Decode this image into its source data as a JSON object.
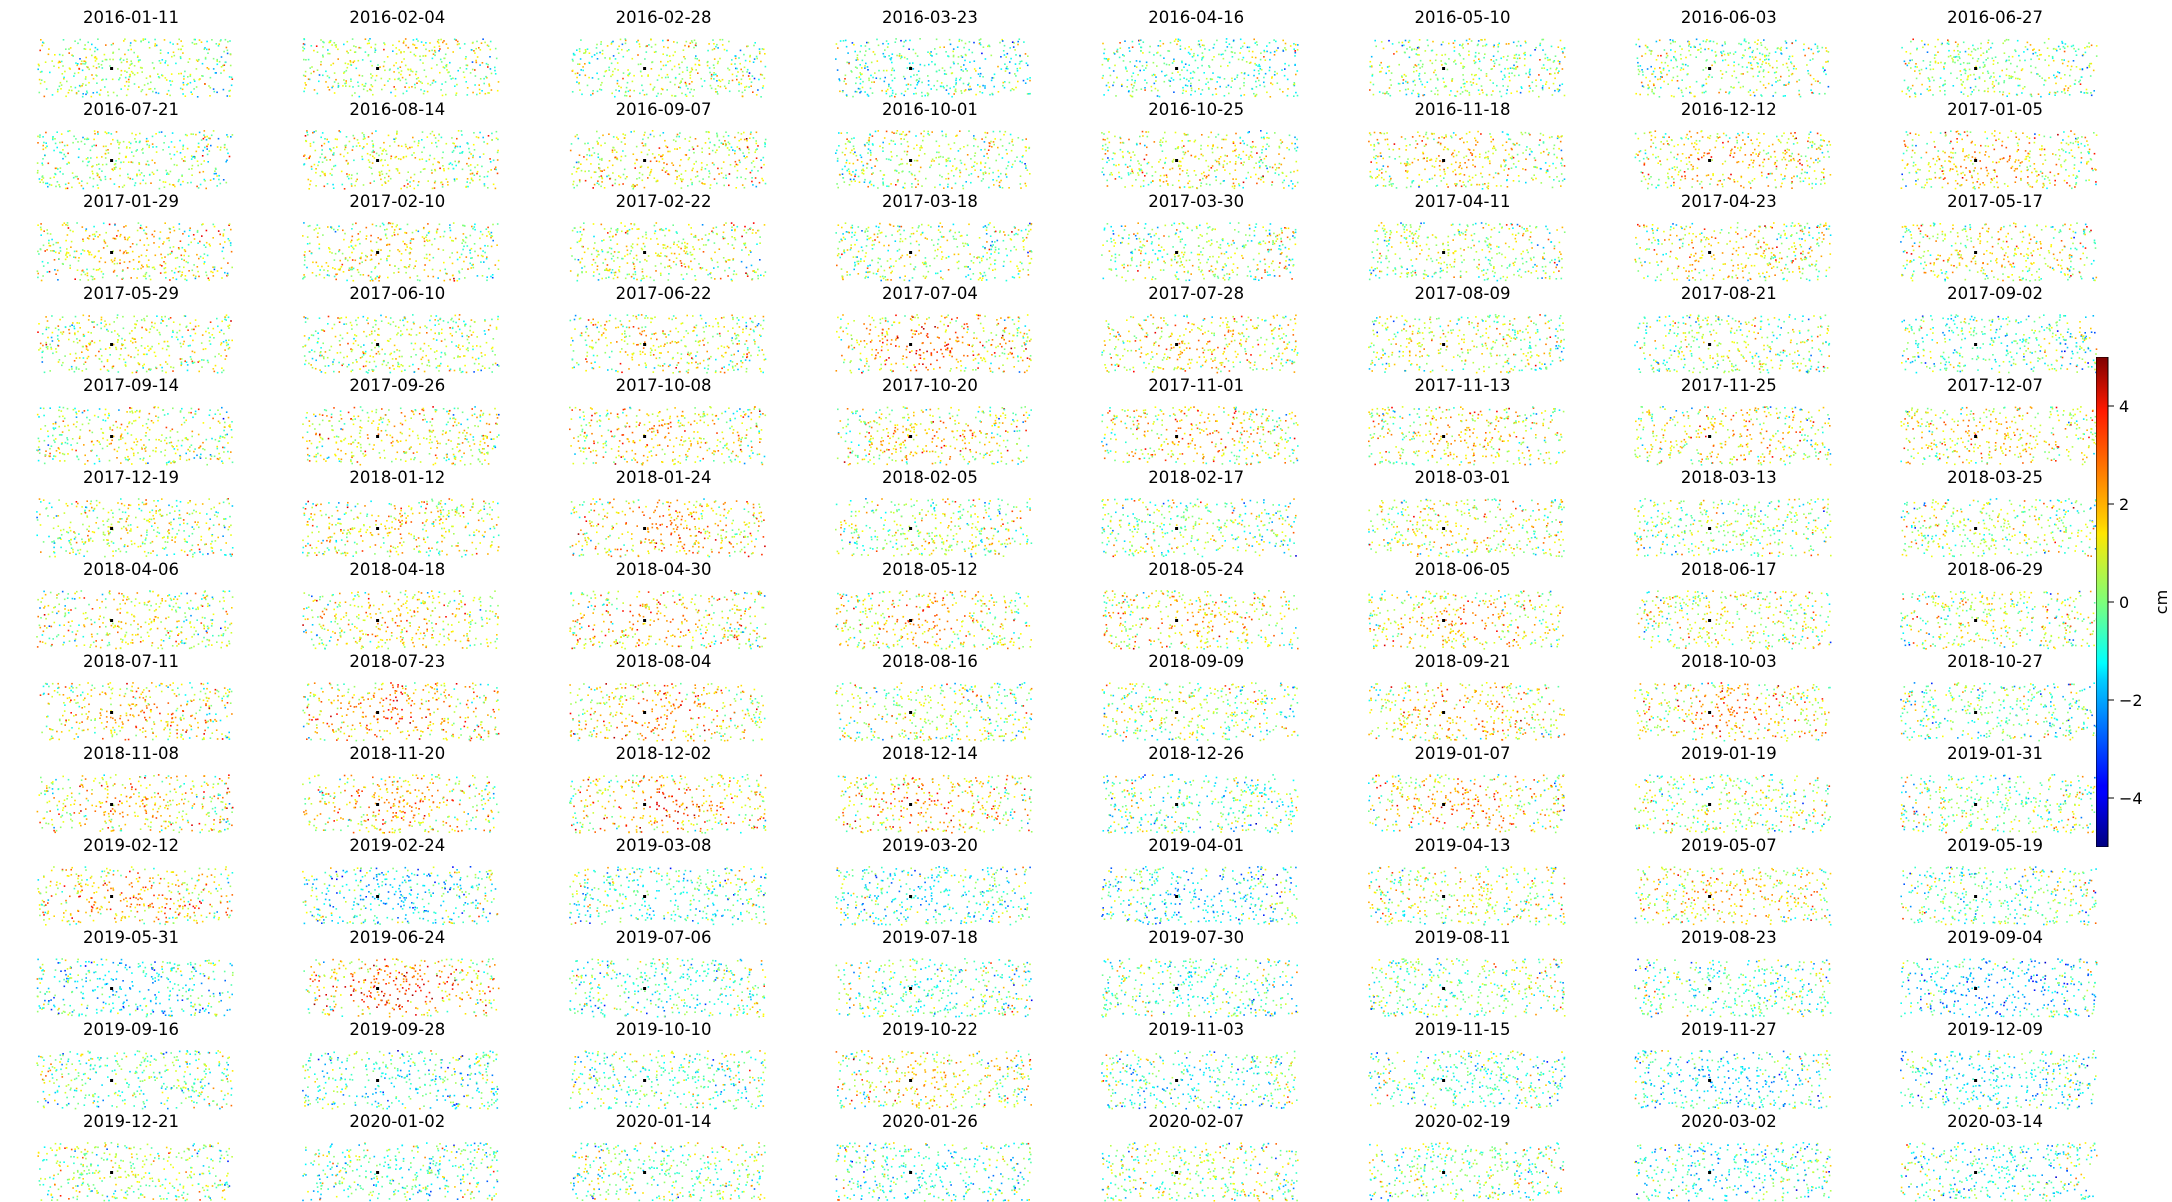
{
  "chart_data": {
    "type": "scatter",
    "layout": "small-multiples grid, 8 columns x 13 rows; each panel is a sparse point map colored by displacement",
    "dates": [
      "2016-01-11",
      "2016-02-04",
      "2016-02-28",
      "2016-03-23",
      "2016-04-16",
      "2016-05-10",
      "2016-06-03",
      "2016-06-27",
      "2016-07-21",
      "2016-08-14",
      "2016-09-07",
      "2016-10-01",
      "2016-10-25",
      "2016-11-18",
      "2016-12-12",
      "2017-01-05",
      "2017-01-29",
      "2017-02-10",
      "2017-02-22",
      "2017-03-18",
      "2017-03-30",
      "2017-04-11",
      "2017-04-23",
      "2017-05-17",
      "2017-05-29",
      "2017-06-10",
      "2017-06-22",
      "2017-07-04",
      "2017-07-28",
      "2017-08-09",
      "2017-08-21",
      "2017-09-02",
      "2017-09-14",
      "2017-09-26",
      "2017-10-08",
      "2017-10-20",
      "2017-11-01",
      "2017-11-13",
      "2017-11-25",
      "2017-12-07",
      "2017-12-19",
      "2018-01-12",
      "2018-01-24",
      "2018-02-05",
      "2018-02-17",
      "2018-03-01",
      "2018-03-13",
      "2018-03-25",
      "2018-04-06",
      "2018-04-18",
      "2018-04-30",
      "2018-05-12",
      "2018-05-24",
      "2018-06-05",
      "2018-06-17",
      "2018-06-29",
      "2018-07-11",
      "2018-07-23",
      "2018-08-04",
      "2018-08-16",
      "2018-09-09",
      "2018-09-21",
      "2018-10-03",
      "2018-10-27",
      "2018-11-08",
      "2018-11-20",
      "2018-12-02",
      "2018-12-14",
      "2018-12-26",
      "2019-01-07",
      "2019-01-19",
      "2019-01-31",
      "2019-02-12",
      "2019-02-24",
      "2019-03-08",
      "2019-03-20",
      "2019-04-01",
      "2019-04-13",
      "2019-05-07",
      "2019-05-19",
      "2019-05-31",
      "2019-06-24",
      "2019-07-06",
      "2019-07-18",
      "2019-07-30",
      "2019-08-11",
      "2019-08-23",
      "2019-09-04",
      "2019-09-16",
      "2019-09-28",
      "2019-10-10",
      "2019-10-22",
      "2019-11-03",
      "2019-11-15",
      "2019-11-27",
      "2019-12-09",
      "2019-12-21",
      "2020-01-02",
      "2020-01-14",
      "2020-01-26",
      "2020-02-07",
      "2020-02-19",
      "2020-03-02",
      "2020-03-14"
    ],
    "mean_displacement_cm": [
      0.5,
      0.7,
      0.6,
      -0.6,
      -0.5,
      0.2,
      0.4,
      0.2,
      0.5,
      1.0,
      1.5,
      0.6,
      1.2,
      1.6,
      2.0,
      1.8,
      1.6,
      1.2,
      1.0,
      0.6,
      0.5,
      0.6,
      1.4,
      1.2,
      1.0,
      0.8,
      1.2,
      2.5,
      1.5,
      1.0,
      0.6,
      -0.5,
      1.0,
      1.4,
      1.8,
      1.6,
      1.8,
      1.4,
      1.5,
      1.6,
      0.8,
      1.5,
      2.2,
      0.6,
      0.3,
      1.2,
      0.3,
      0.4,
      1.2,
      1.4,
      2.0,
      1.8,
      1.6,
      1.8,
      1.0,
      0.8,
      1.8,
      2.5,
      2.2,
      0.6,
      0.5,
      2.0,
      2.2,
      -0.2,
      1.8,
      2.0,
      2.5,
      2.2,
      -0.5,
      2.0,
      0.6,
      0.0,
      2.2,
      -1.5,
      -0.8,
      -1.2,
      -1.5,
      0.8,
      1.8,
      -0.4,
      -1.5,
      2.8,
      -0.6,
      -0.4,
      -0.6,
      -0.2,
      -0.5,
      -2.0,
      -0.2,
      -1.0,
      -0.3,
      1.5,
      -0.8,
      -0.6,
      -1.5,
      -1.2,
      0.4,
      -0.5,
      -0.1,
      -0.8,
      0.2,
      0.0,
      -1.0,
      -0.8
    ],
    "colorbar": {
      "label": "cm",
      "colormap": "jet",
      "vmin": -5,
      "vmax": 5,
      "ticks": [
        4,
        2,
        0,
        -2,
        -4
      ],
      "tick_labels": [
        "4",
        "2",
        "0",
        "−2",
        "−4"
      ]
    },
    "reference_marker_color": "#000000",
    "grid": false
  }
}
